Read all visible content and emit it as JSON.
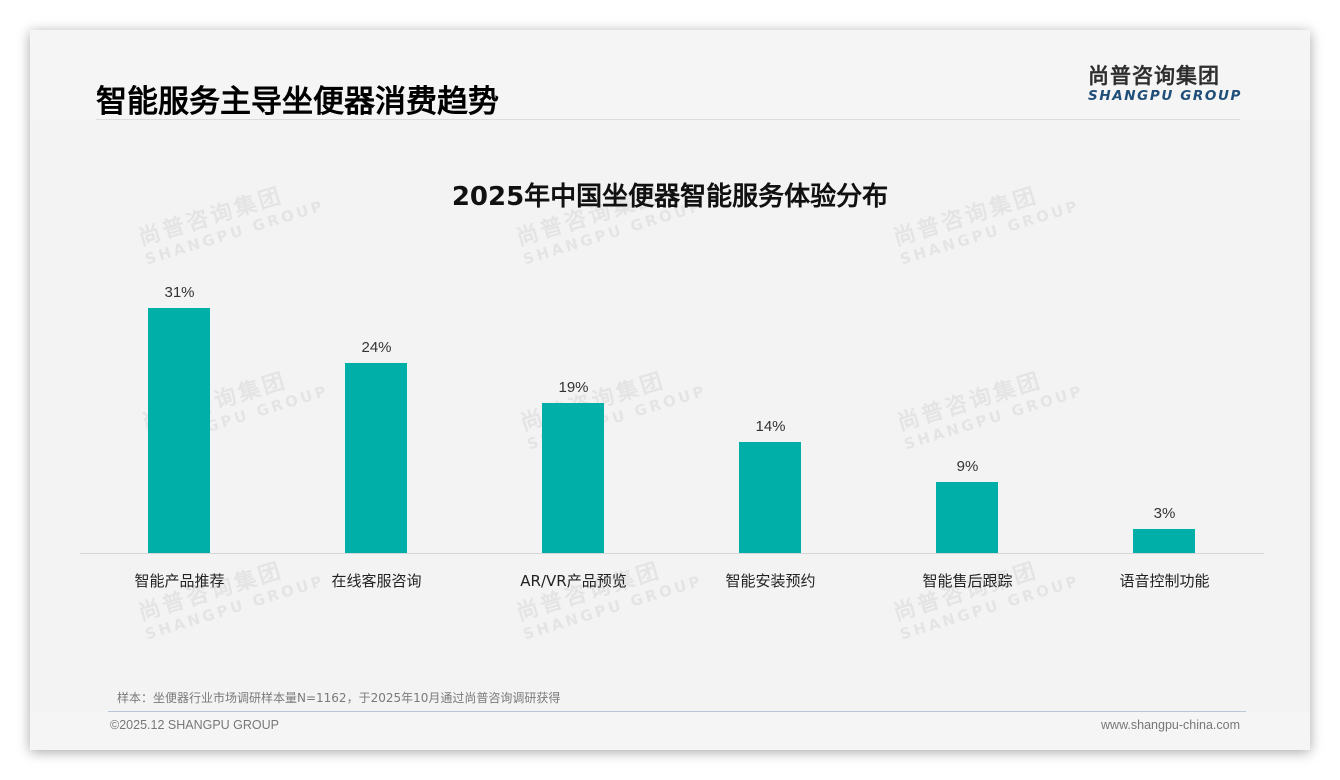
{
  "header": {
    "title": "智能服务主导坐便器消费趋势",
    "logo_cn": "尚普咨询集团",
    "logo_en": "SHANGPU GROUP"
  },
  "watermark": {
    "cn": "尚普咨询集团",
    "en": "SHANGPU GROUP"
  },
  "colors": {
    "bar": "#00b0a8",
    "logo_en": "#1f4e79",
    "background": "#f3f3f3"
  },
  "chart_data": {
    "type": "bar",
    "title": "2025年中国坐便器智能服务体验分布",
    "categories": [
      "智能产品推荐",
      "在线客服咨询",
      "AR/VR产品预览",
      "智能安装预约",
      "智能售后跟踪",
      "语音控制功能"
    ],
    "values": [
      31,
      24,
      19,
      14,
      9,
      3
    ],
    "value_labels": [
      "31%",
      "24%",
      "19%",
      "14%",
      "9%",
      "3%"
    ],
    "unit": "%",
    "xlabel": "",
    "ylabel": "",
    "ylim": [
      0,
      31
    ],
    "grid": false,
    "legend": "none",
    "data_labels": true
  },
  "footer": {
    "note": "样本：坐便器行业市场调研样本量N=1162，于2025年10月通过尚普咨询调研获得",
    "copyright": "©2025.12 SHANGPU GROUP",
    "website": "www.shangpu-china.com"
  }
}
